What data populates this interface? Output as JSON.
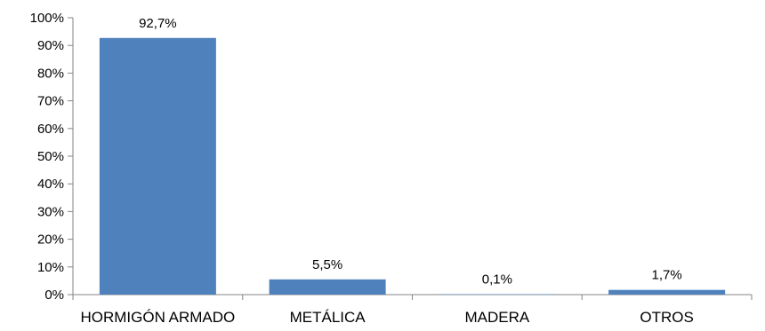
{
  "chart_data": {
    "type": "bar",
    "categories": [
      "HORMIGÓN ARMADO",
      "METÁLICA",
      "MADERA",
      "OTROS"
    ],
    "values": [
      92.7,
      5.5,
      0.1,
      1.7
    ],
    "data_labels": [
      "92,7%",
      "5,5%",
      "0,1%",
      "1,7%"
    ],
    "y_ticks": [
      0,
      10,
      20,
      30,
      40,
      50,
      60,
      70,
      80,
      90,
      100
    ],
    "y_tick_labels": [
      "0%",
      "10%",
      "20%",
      "30%",
      "40%",
      "50%",
      "60%",
      "70%",
      "80%",
      "90%",
      "100%"
    ],
    "ylim": [
      0,
      100
    ],
    "title": "",
    "xlabel": "",
    "ylabel": "",
    "grid": false,
    "legend": "none",
    "bar_color": "#4F81BD",
    "axis_color": "#868686"
  }
}
